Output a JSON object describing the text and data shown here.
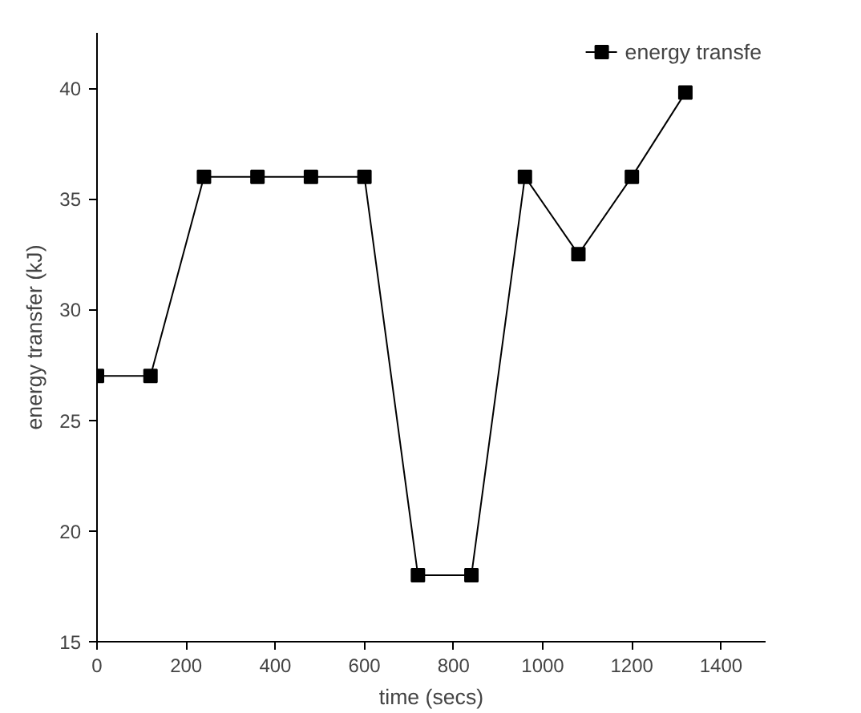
{
  "chart_data": {
    "type": "line",
    "xlabel": "time (secs)",
    "ylabel": "energy transfer (kJ)",
    "x": [
      0,
      120,
      240,
      360,
      480,
      600,
      720,
      840,
      960,
      1080,
      1200,
      1320
    ],
    "series": [
      {
        "name": "energy transfe",
        "color": "#000000",
        "values": [
          27,
          27,
          36,
          36,
          36,
          36,
          18,
          18,
          36,
          32.5,
          36,
          39.8
        ]
      }
    ],
    "xlim": [
      0,
      1500
    ],
    "ylim": [
      15,
      42.5
    ],
    "xticks": [
      0,
      200,
      400,
      600,
      800,
      1000,
      1200,
      1400
    ],
    "yticks": [
      15,
      20,
      25,
      30,
      35,
      40
    ],
    "marker": "square",
    "line_style": "solid",
    "grid": false,
    "legend": "top right"
  }
}
